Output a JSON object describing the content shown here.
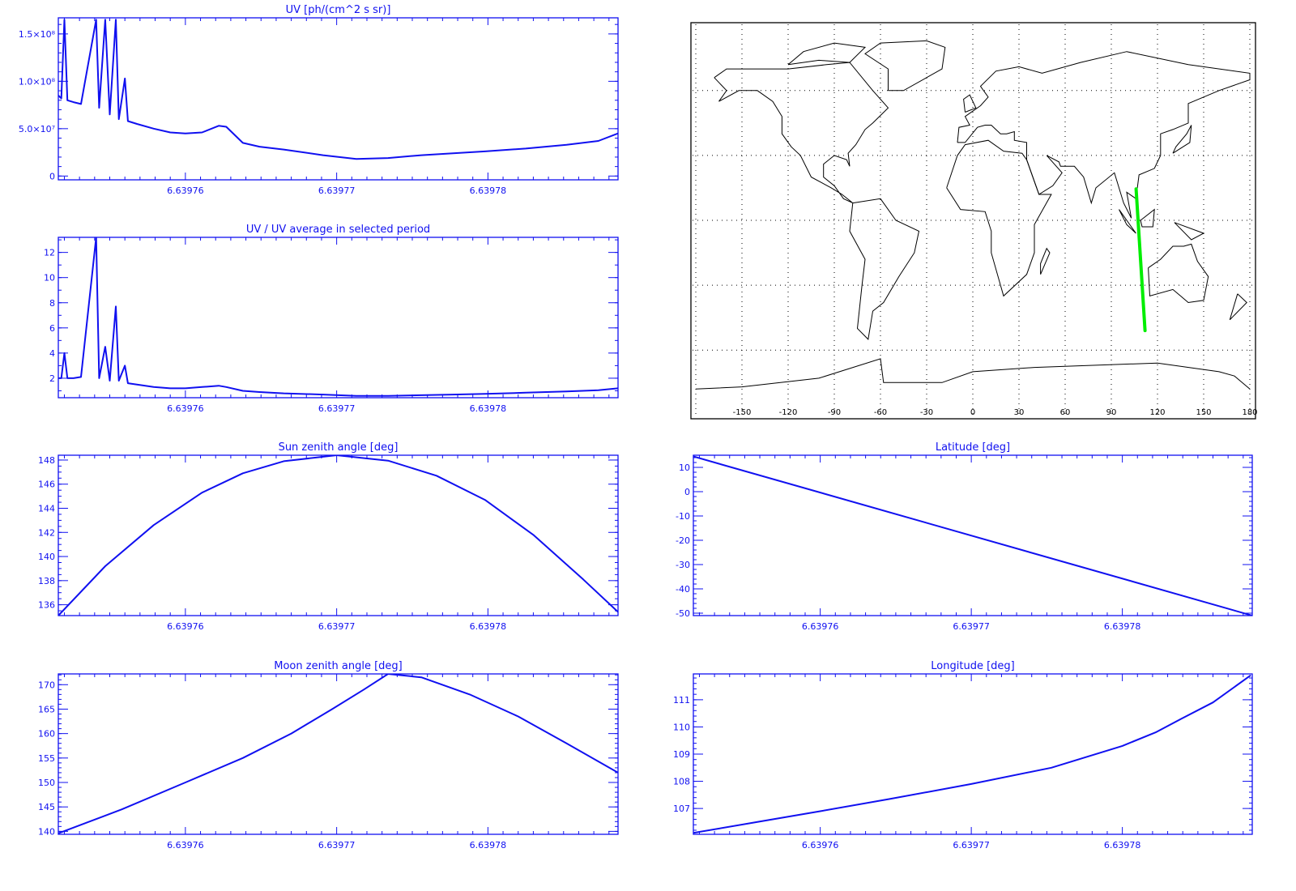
{
  "colors": {
    "axis": "#1010f0",
    "series": "#1010f0",
    "track": "#00ee00",
    "map": "#000000"
  },
  "chart_data": [
    {
      "id": "uv",
      "type": "line",
      "title": "UV [ph/(cm^2 s sr)]",
      "xlim": [
        6.6397516,
        6.6397886
      ],
      "xticks": [
        {
          "v": 6.63976,
          "label": "6.63976"
        },
        {
          "v": 6.63977,
          "label": "6.63977"
        },
        {
          "v": 6.63978,
          "label": "6.63978"
        }
      ],
      "ylim": [
        -4000000,
        167000000
      ],
      "yticks": [
        {
          "v": 0,
          "label": "0"
        },
        {
          "v": 50000000,
          "label": "5.0×10⁷"
        },
        {
          "v": 100000000,
          "label": "1.0×10⁸"
        },
        {
          "v": 150000000,
          "label": "1.5×10⁸"
        }
      ],
      "yminor": 10000000,
      "x": [
        6.6397516,
        6.6397518,
        6.639752,
        6.6397522,
        6.6397526,
        6.6397531,
        6.6397541,
        6.6397543,
        6.6397547,
        6.639755,
        6.6397554,
        6.6397556,
        6.639756,
        6.6397562,
        6.6397568,
        6.6397579,
        6.639759,
        6.63976,
        6.6397611,
        6.6397622,
        6.6397627,
        6.6397638,
        6.6397649,
        6.6397665,
        6.6397691,
        6.6397713,
        6.6397734,
        6.6397756,
        6.6397777,
        6.6397798,
        6.6397825,
        6.6397852,
        6.6397873,
        6.6397886
      ],
      "y": [
        85000000,
        82000000,
        165000000,
        80000000,
        78000000,
        76000000,
        165000000,
        72000000,
        165000000,
        65000000,
        165000000,
        60000000,
        103000000,
        58000000,
        55000000,
        50000000,
        46000000,
        45000000,
        46000000,
        53000000,
        52000000,
        35000000,
        31000000,
        28000000,
        22000000,
        18000000,
        19000000,
        22000000,
        24000000,
        26000000,
        29000000,
        33000000,
        37000000,
        45000000
      ]
    },
    {
      "id": "ratio",
      "type": "line",
      "title": "UV / UV average in selected period",
      "xlim": [
        6.6397516,
        6.6397886
      ],
      "xticks": [
        {
          "v": 6.63976,
          "label": "6.63976"
        },
        {
          "v": 6.63977,
          "label": "6.63977"
        },
        {
          "v": 6.63978,
          "label": "6.63978"
        }
      ],
      "ylim": [
        0.45,
        13.2
      ],
      "yticks": [
        {
          "v": 2,
          "label": "2"
        },
        {
          "v": 4,
          "label": "4"
        },
        {
          "v": 6,
          "label": "6"
        },
        {
          "v": 8,
          "label": "8"
        },
        {
          "v": 10,
          "label": "10"
        },
        {
          "v": 12,
          "label": "12"
        }
      ],
      "yminor": 1,
      "x": [
        6.6397516,
        6.6397518,
        6.639752,
        6.6397522,
        6.6397526,
        6.6397531,
        6.6397541,
        6.6397543,
        6.6397547,
        6.639755,
        6.6397554,
        6.6397556,
        6.639756,
        6.6397562,
        6.6397568,
        6.6397579,
        6.639759,
        6.63976,
        6.6397611,
        6.6397622,
        6.6397627,
        6.6397638,
        6.6397649,
        6.6397665,
        6.6397691,
        6.6397713,
        6.6397734,
        6.6397756,
        6.6397777,
        6.6397798,
        6.6397825,
        6.6397852,
        6.6397873,
        6.6397886
      ],
      "y": [
        2.0,
        2.0,
        4.0,
        2.0,
        2.0,
        2.1,
        13.2,
        2.0,
        4.5,
        1.8,
        7.7,
        1.8,
        3.0,
        1.6,
        1.5,
        1.3,
        1.2,
        1.2,
        1.3,
        1.4,
        1.3,
        1.0,
        0.9,
        0.8,
        0.7,
        0.6,
        0.6,
        0.65,
        0.7,
        0.75,
        0.85,
        0.95,
        1.05,
        1.2
      ]
    },
    {
      "id": "sun",
      "type": "line",
      "title": "Sun zenith angle [deg]",
      "xlim": [
        6.6397516,
        6.6397886
      ],
      "xticks": [
        {
          "v": 6.63976,
          "label": "6.63976"
        },
        {
          "v": 6.63977,
          "label": "6.63977"
        },
        {
          "v": 6.63978,
          "label": "6.63978"
        }
      ],
      "ylim": [
        135.1,
        148.4
      ],
      "yticks": [
        {
          "v": 136,
          "label": "136"
        },
        {
          "v": 138,
          "label": "138"
        },
        {
          "v": 140,
          "label": "140"
        },
        {
          "v": 142,
          "label": "142"
        },
        {
          "v": 144,
          "label": "144"
        },
        {
          "v": 146,
          "label": "146"
        },
        {
          "v": 148,
          "label": "148"
        }
      ],
      "yminor": 0.5,
      "x": [
        6.6397516,
        6.6397547,
        6.6397579,
        6.6397611,
        6.6397638,
        6.6397665,
        6.63977,
        6.6397734,
        6.6397766,
        6.6397798,
        6.639783,
        6.6397863,
        6.6397886
      ],
      "y": [
        135.1,
        139.2,
        142.6,
        145.3,
        146.9,
        147.9,
        148.4,
        147.95,
        146.7,
        144.7,
        141.8,
        138.1,
        135.4
      ]
    },
    {
      "id": "moon",
      "type": "line",
      "title": "Moon zenith angle [deg]",
      "xlim": [
        6.6397516,
        6.6397886
      ],
      "xticks": [
        {
          "v": 6.63976,
          "label": "6.63976"
        },
        {
          "v": 6.63977,
          "label": "6.63977"
        },
        {
          "v": 6.63978,
          "label": "6.63978"
        }
      ],
      "ylim": [
        139.4,
        172.2
      ],
      "yticks": [
        {
          "v": 140,
          "label": "140"
        },
        {
          "v": 145,
          "label": "145"
        },
        {
          "v": 150,
          "label": "150"
        },
        {
          "v": 155,
          "label": "155"
        },
        {
          "v": 160,
          "label": "160"
        },
        {
          "v": 165,
          "label": "165"
        },
        {
          "v": 170,
          "label": "170"
        }
      ],
      "yminor": 1,
      "x": [
        6.6397516,
        6.6397558,
        6.63976,
        6.6397638,
        6.639767,
        6.6397697,
        6.6397718,
        6.6397734,
        6.6397756,
        6.6397788,
        6.639782,
        6.6397852,
        6.6397886
      ],
      "y": [
        139.6,
        144.5,
        150,
        155,
        160,
        165,
        169,
        172.2,
        171.5,
        168,
        163.5,
        158,
        152
      ]
    },
    {
      "id": "lat",
      "type": "line",
      "title": "Latitude [deg]",
      "xlim": [
        6.6397516,
        6.6397886
      ],
      "xticks": [
        {
          "v": 6.63976,
          "label": "6.63976"
        },
        {
          "v": 6.63977,
          "label": "6.63977"
        },
        {
          "v": 6.63978,
          "label": "6.63978"
        }
      ],
      "ylim": [
        -51,
        15
      ],
      "yticks": [
        {
          "v": -50,
          "label": "-50"
        },
        {
          "v": -40,
          "label": "-40"
        },
        {
          "v": -30,
          "label": "-30"
        },
        {
          "v": -20,
          "label": "-20"
        },
        {
          "v": -10,
          "label": "-10"
        },
        {
          "v": 0,
          "label": "0"
        },
        {
          "v": 10,
          "label": "10"
        }
      ],
      "yminor": 2,
      "x": [
        6.6397516,
        6.6397886
      ],
      "y": [
        14.5,
        -51
      ]
    },
    {
      "id": "lon",
      "type": "line",
      "title": "Longitude [deg]",
      "xlim": [
        6.6397516,
        6.6397886
      ],
      "xticks": [
        {
          "v": 6.63976,
          "label": "6.63976"
        },
        {
          "v": 6.63977,
          "label": "6.63977"
        },
        {
          "v": 6.63978,
          "label": "6.63978"
        }
      ],
      "ylim": [
        106.05,
        111.95
      ],
      "yticks": [
        {
          "v": 107,
          "label": "107"
        },
        {
          "v": 108,
          "label": "108"
        },
        {
          "v": 109,
          "label": "109"
        },
        {
          "v": 110,
          "label": "110"
        },
        {
          "v": 111,
          "label": "111"
        }
      ],
      "yminor": 0.2,
      "x": [
        6.6397516,
        6.6397558,
        6.63976,
        6.6397646,
        6.63977,
        6.6397753,
        6.63978,
        6.6397822,
        6.6397839,
        6.639786,
        6.6397885
      ],
      "y": [
        106.1,
        106.5,
        106.9,
        107.35,
        107.9,
        108.5,
        109.3,
        109.8,
        110.3,
        110.9,
        111.9
      ]
    }
  ],
  "map": {
    "type": "map",
    "lon_ticks": [
      "-150",
      "-120",
      "-90",
      "-60",
      "-30",
      "0",
      "30",
      "60",
      "90",
      "120",
      "150",
      "180"
    ],
    "track": {
      "lon": [
        106.1,
        111.9
      ],
      "lat": [
        14.5,
        -51
      ]
    }
  }
}
